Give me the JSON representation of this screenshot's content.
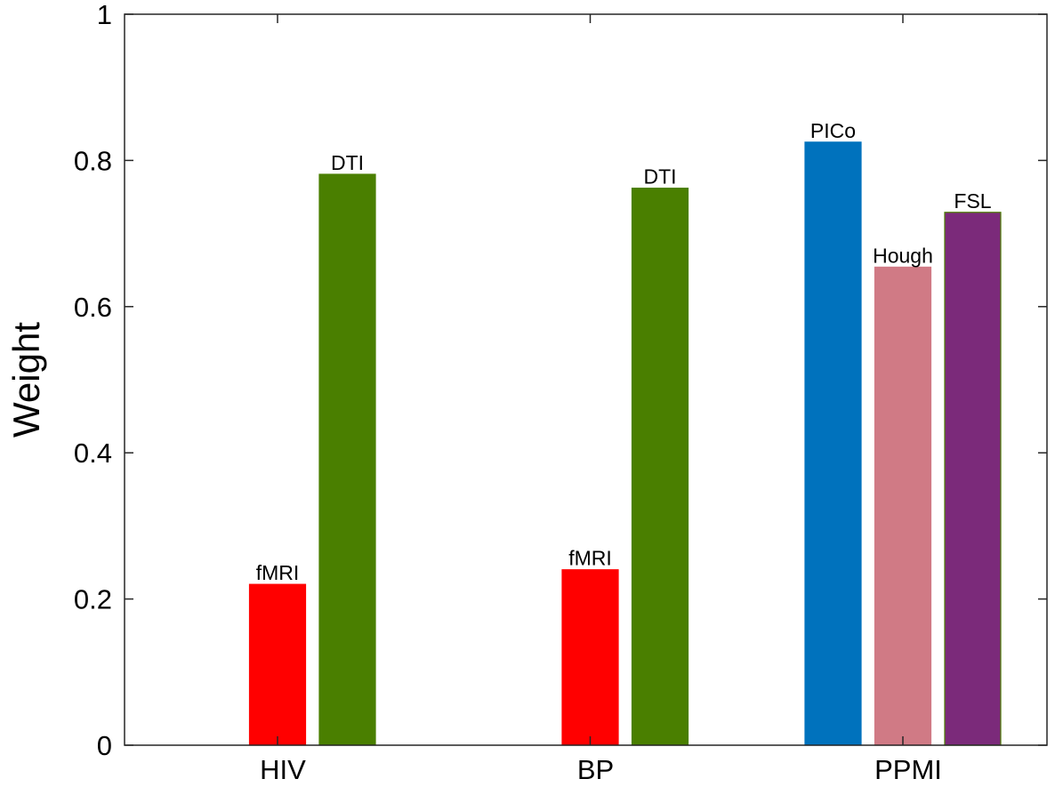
{
  "chart_data": {
    "type": "bar",
    "title": "",
    "xlabel": "",
    "ylabel": "Weight",
    "ylim": [
      0,
      1
    ],
    "yticks": [
      "0",
      "0.2",
      "0.4",
      "0.6",
      "0.8",
      "1"
    ],
    "categories": [
      "HIV",
      "BP",
      "PPMI"
    ],
    "grid": false,
    "groups": [
      {
        "category": "HIV",
        "bars": [
          {
            "label": "fMRI",
            "value": 0.22,
            "color": "#ff0000"
          },
          {
            "label": "DTI",
            "value": 0.781,
            "color": "#4a7f00"
          }
        ]
      },
      {
        "category": "BP",
        "bars": [
          {
            "label": "fMRI",
            "value": 0.24,
            "color": "#ff0000"
          },
          {
            "label": "DTI",
            "value": 0.762,
            "color": "#4a7f00"
          }
        ]
      },
      {
        "category": "PPMI",
        "bars": [
          {
            "label": "PICo",
            "value": 0.825,
            "color": "#0072bd"
          },
          {
            "label": "Hough",
            "value": 0.654,
            "color": "#d07a85"
          },
          {
            "label": "FSL",
            "value": 0.729,
            "color": "#7b2a7a"
          }
        ]
      }
    ]
  }
}
